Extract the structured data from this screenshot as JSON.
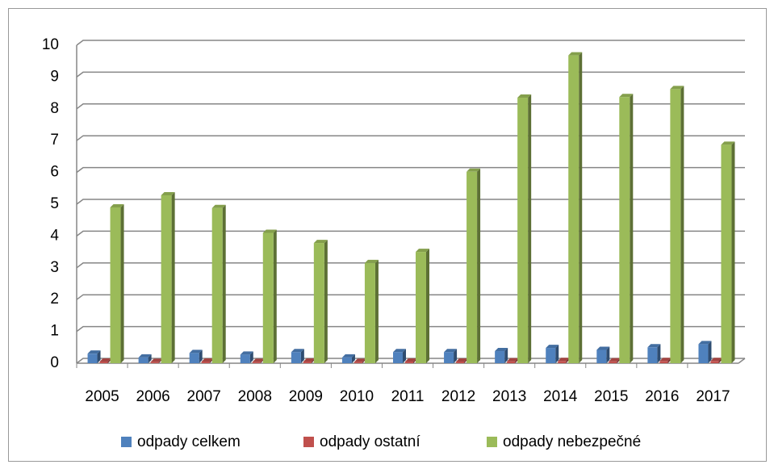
{
  "chart_data": {
    "type": "bar",
    "categories": [
      "2005",
      "2006",
      "2007",
      "2008",
      "2009",
      "2010",
      "2011",
      "2012",
      "2013",
      "2014",
      "2015",
      "2016",
      "2017"
    ],
    "series": [
      {
        "name": "odpady celkem",
        "color": "#4f81bd",
        "values": [
          0.3,
          0.18,
          0.32,
          0.27,
          0.35,
          0.18,
          0.35,
          0.35,
          0.38,
          0.48,
          0.42,
          0.5,
          0.6
        ]
      },
      {
        "name": "odpady ostatní",
        "color": "#c0504d",
        "values": [
          0.05,
          0.04,
          0.05,
          0.04,
          0.05,
          0.04,
          0.05,
          0.05,
          0.06,
          0.07,
          0.06,
          0.07,
          0.07
        ]
      },
      {
        "name": "odpady nebezpečné",
        "color": "#9bbb59",
        "values": [
          4.9,
          5.28,
          4.88,
          4.1,
          3.78,
          3.15,
          3.5,
          6.02,
          8.35,
          9.68,
          8.37,
          8.62,
          6.87
        ]
      }
    ],
    "ylim": [
      0,
      10
    ],
    "yticks": [
      0,
      1,
      2,
      3,
      4,
      5,
      6,
      7,
      8,
      9,
      10
    ],
    "grid": true,
    "legend": "bottom"
  }
}
